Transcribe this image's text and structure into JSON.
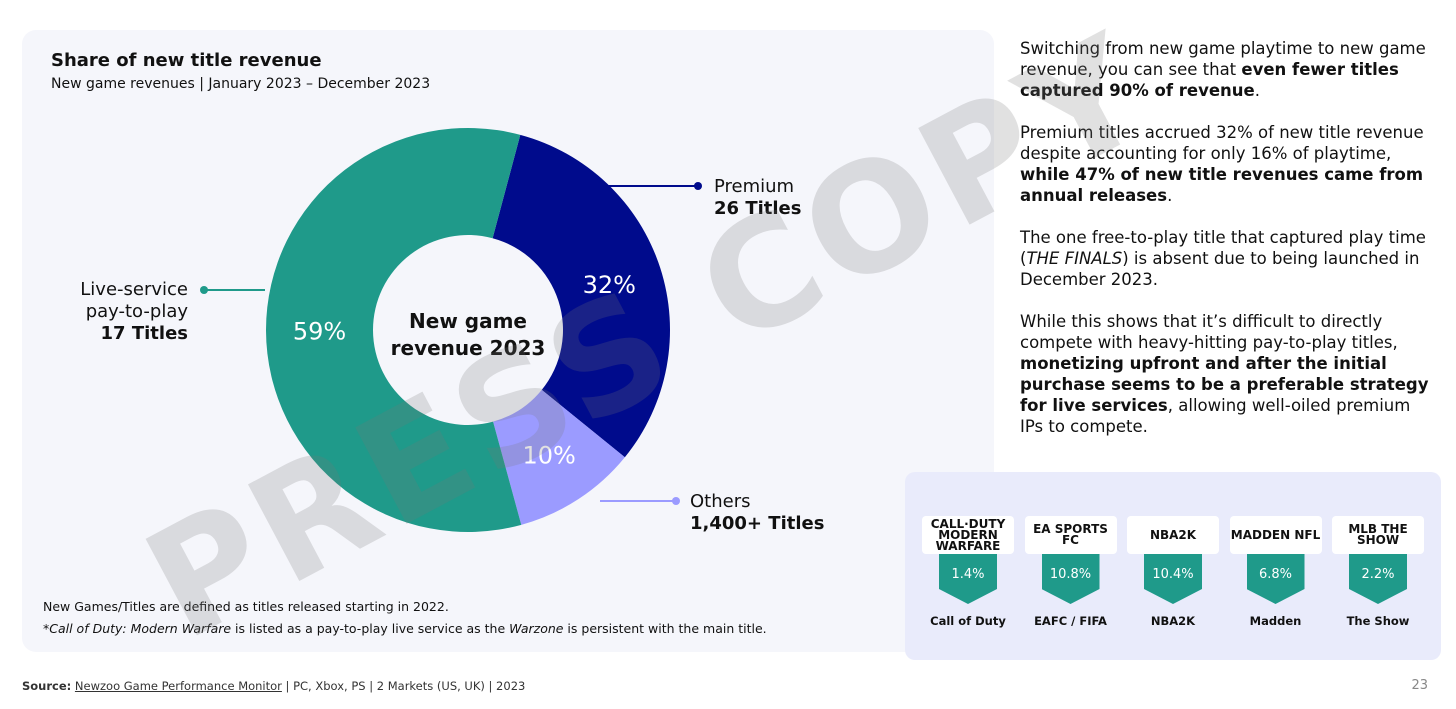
{
  "chart_data": {
    "type": "pie",
    "title": "Share of new title revenue",
    "subtitle": "New game revenues | January 2023 – December 2023",
    "center_label": "New game revenue 2023",
    "slices": [
      {
        "name": "Premium",
        "count": "26 Titles",
        "value": 32,
        "label": "32%",
        "color": "#000b8c"
      },
      {
        "name": "Others",
        "count": "1,400+ Titles",
        "value": 10,
        "label": "10%",
        "color": "#9b9bff"
      },
      {
        "name": "Live-service pay-to-play",
        "count": "17 Titles",
        "value": 59,
        "label": "59%",
        "color": "#1f9a8a"
      }
    ]
  },
  "notes": [
    "New Games/Titles are defined as titles released starting in 2022."
  ],
  "note2": {
    "star": "*",
    "i1": "Call of Duty: Modern Warfare",
    "t1": " is listed as a pay-to-play live service as the ",
    "i2": "Warzone",
    "t2": " is persistent with the main title."
  },
  "source": {
    "label": "Source:",
    "link": "Newzoo Game Performance Monitor",
    "rest": " | PC, Xbox, PS | 2 Markets (US, UK) | 2023"
  },
  "page_number": "23",
  "watermark": "PRESS COPY",
  "text": {
    "p1a": "Switching from new game playtime to new game revenue, you can see that ",
    "p1b": "even fewer titles captured 90% of revenue",
    ".": ".",
    "p2a": "Premium titles accrued 32% of new title revenue despite accounting for only 16% of playtime, ",
    "p2b": "while 47% of new title revenues came from annual releases",
    "p2c": ".",
    "p3a": "The one free-to-play title that captured play time (",
    "p3b": "THE FINALS",
    "p3c": ") is absent due to being launched in December 2023.",
    "p4a": "While this shows that it’s difficult to directly compete with heavy-hitting pay-to-play titles, ",
    "p4b": "monetizing upfront and after the initial purchase seems to be a preferable strategy for live services",
    "p4c": ", allowing well-oiled premium IPs to compete."
  },
  "games": [
    {
      "logo": "CALL·DUTY MODERN WARFARE",
      "share": "1.4%",
      "name": "Call of Duty"
    },
    {
      "logo": "EA SPORTS FC",
      "share": "10.8%",
      "name": "EAFC / FIFA"
    },
    {
      "logo": "NBA2K",
      "share": "10.4%",
      "name": "NBA2K"
    },
    {
      "logo": "MADDEN NFL",
      "share": "6.8%",
      "name": "Madden"
    },
    {
      "logo": "MLB THE SHOW",
      "share": "2.2%",
      "name": "The Show"
    }
  ]
}
